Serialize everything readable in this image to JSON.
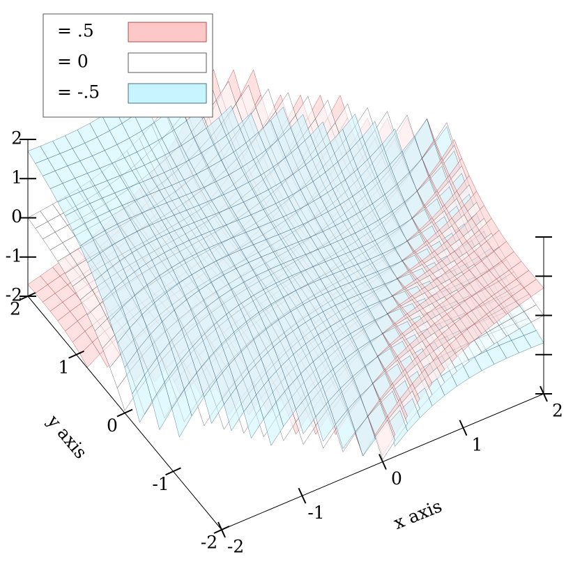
{
  "chart_data": {
    "type": "isosurface3d",
    "xlabel": "x axis",
    "ylabel": "y axis",
    "xlim": [
      -2,
      2
    ],
    "ylim": [
      -2,
      2
    ],
    "zlim": [
      -2,
      2
    ],
    "xticks": [
      -2,
      -1,
      0,
      1,
      2
    ],
    "yticks": [
      -2,
      -1,
      0,
      1,
      2
    ],
    "zticks": [
      -2,
      -1,
      0,
      1,
      2
    ],
    "legend": "top-left",
    "series": [
      {
        "name": "= .5",
        "level": 0.5,
        "color": "#ffc8c8",
        "line_color": "#a02828"
      },
      {
        "name": "= 0",
        "level": 0,
        "color": "#ffffff",
        "line_color": "#303030"
      },
      {
        "name": "= -.5",
        "level": -0.5,
        "color": "#c8f4ff",
        "line_color": "#1e4e6e"
      }
    ]
  }
}
